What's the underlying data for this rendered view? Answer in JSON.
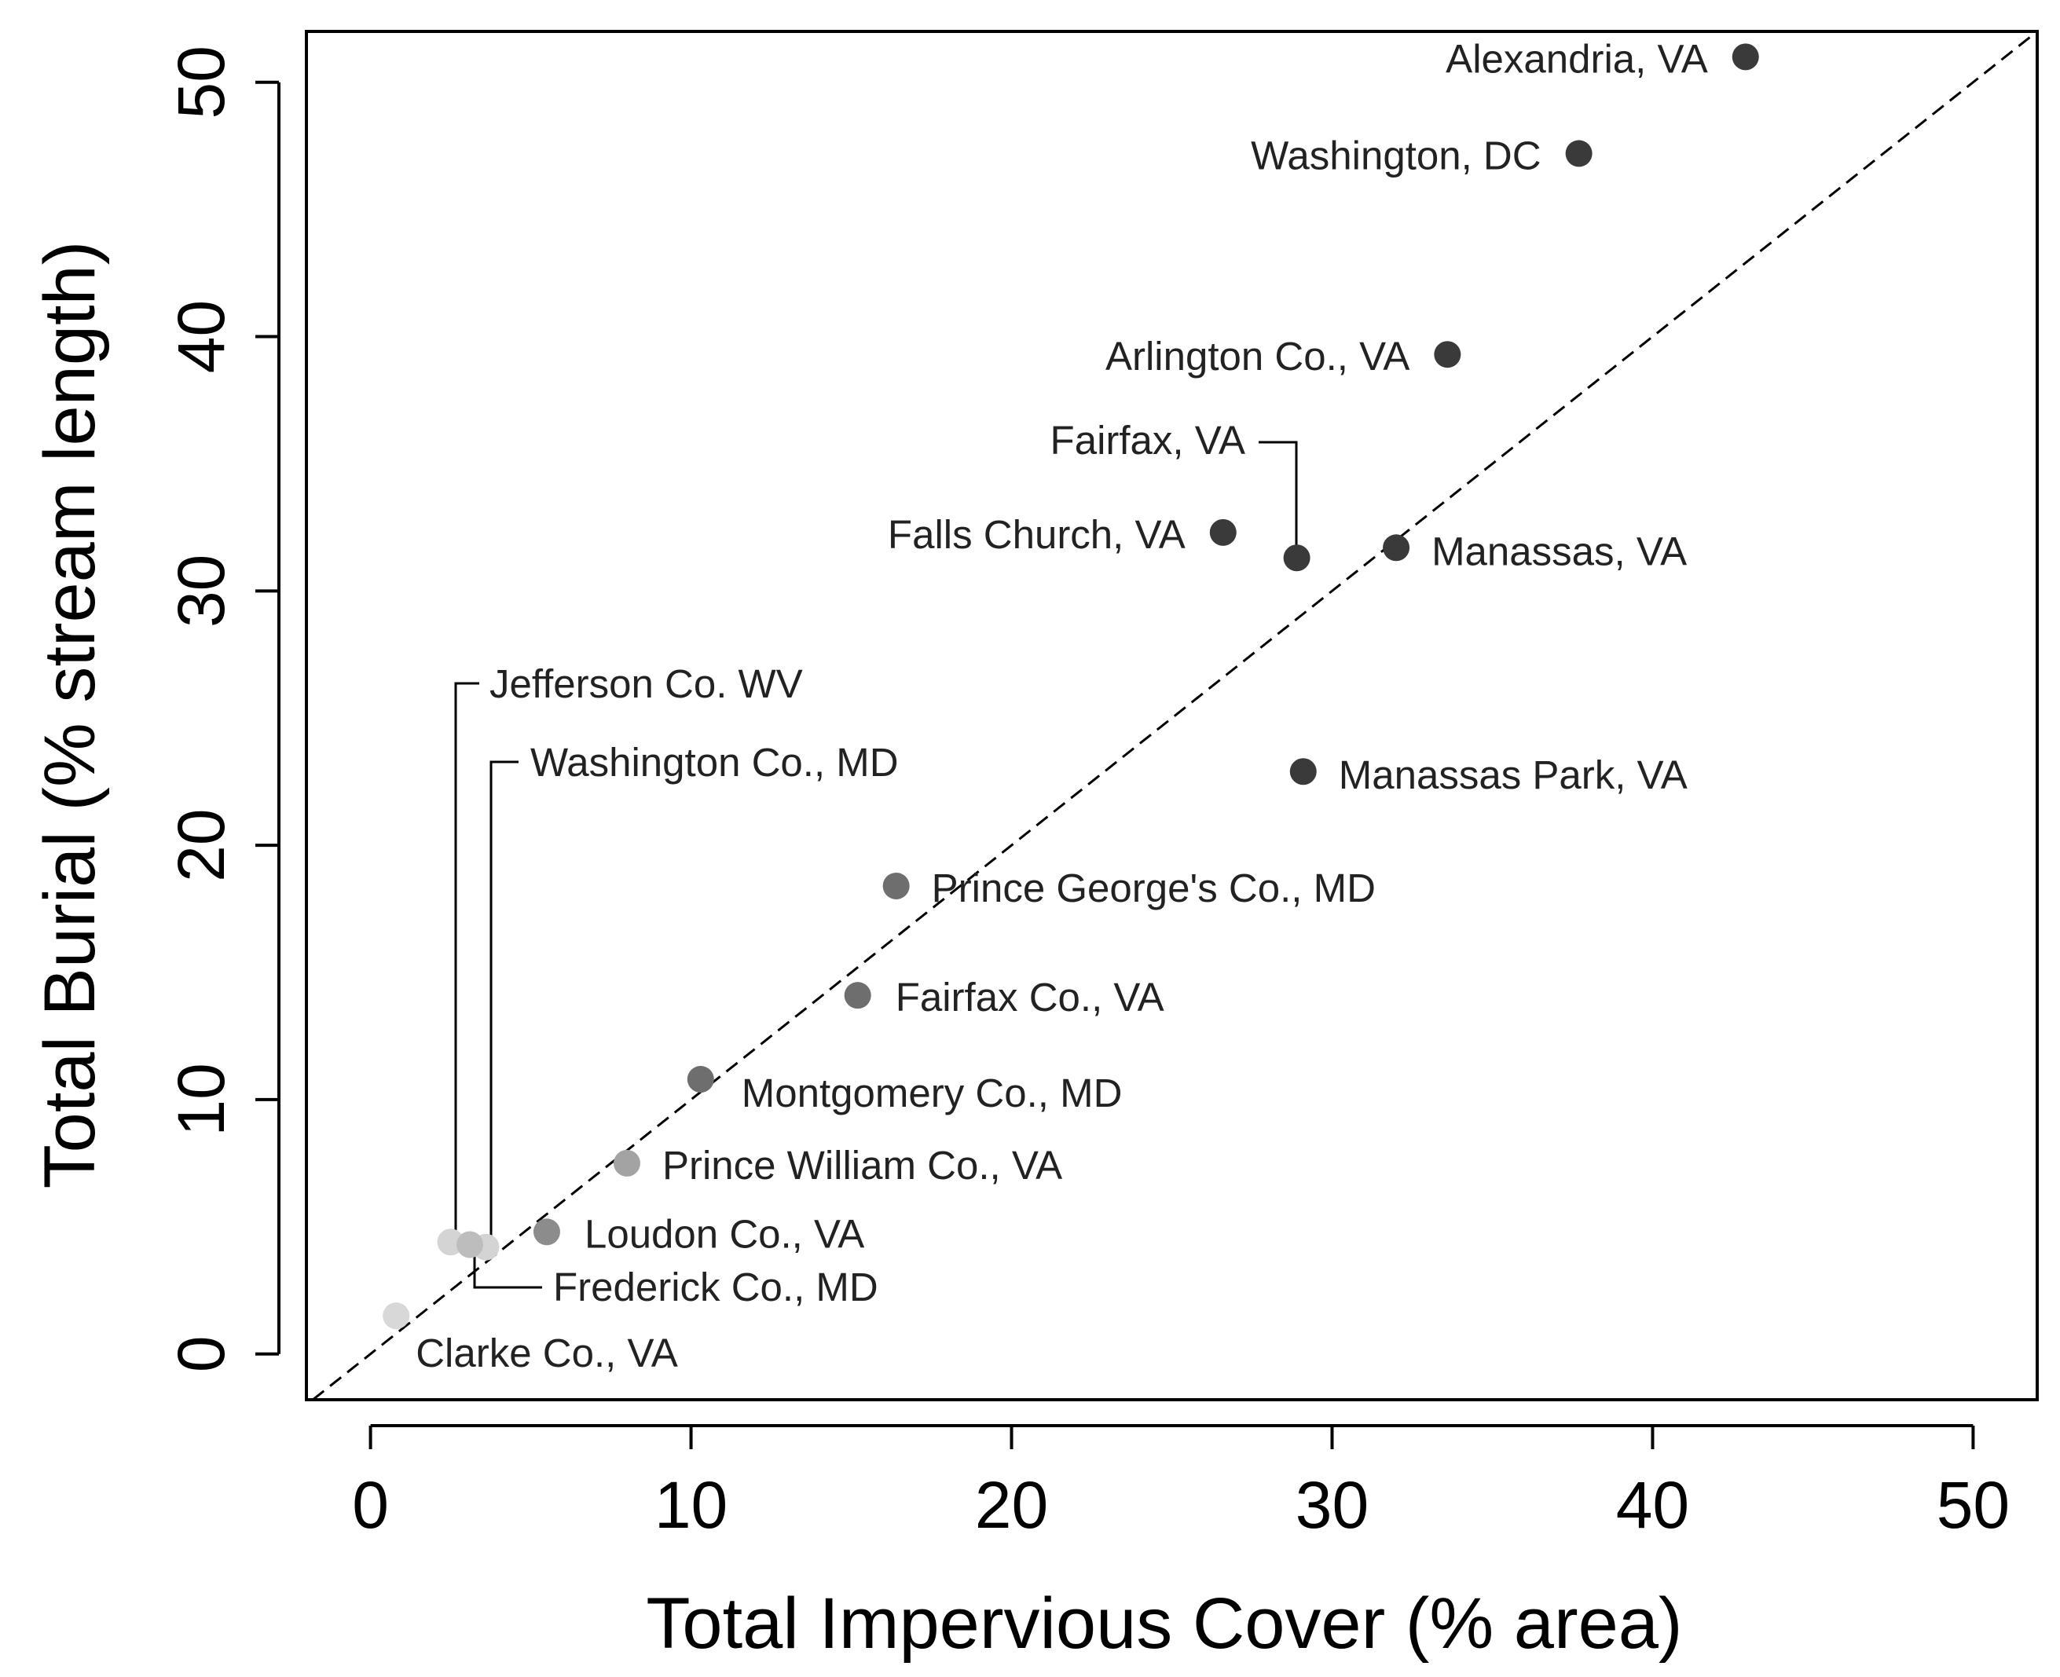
{
  "chart_data": {
    "type": "scatter",
    "title": "",
    "xlabel": "Total Impervious Cover (% area)",
    "ylabel": "Total Burial (% stream length)",
    "xlim": [
      -2,
      52
    ],
    "ylim": [
      -1.8,
      52
    ],
    "xticks": [
      0,
      10,
      20,
      30,
      40,
      50
    ],
    "yticks": [
      0,
      10,
      20,
      30,
      40,
      50
    ],
    "grid": false,
    "reference_line": {
      "type": "1:1",
      "style": "dashed"
    },
    "points": [
      {
        "name": "Alexandria, VA",
        "x": 42.9,
        "y": 51.0,
        "color": "#3a3a3a"
      },
      {
        "name": "Washington, DC",
        "x": 37.7,
        "y": 47.2,
        "color": "#3a3a3a"
      },
      {
        "name": "Arlington Co., VA",
        "x": 33.6,
        "y": 39.3,
        "color": "#3a3a3a"
      },
      {
        "name": "Fairfax, VA",
        "x": 28.9,
        "y": 31.3,
        "color": "#3a3a3a"
      },
      {
        "name": "Falls Church, VA",
        "x": 26.6,
        "y": 32.3,
        "color": "#3a3a3a"
      },
      {
        "name": "Manassas, VA",
        "x": 32.0,
        "y": 31.7,
        "color": "#3a3a3a"
      },
      {
        "name": "Manassas Park, VA",
        "x": 29.1,
        "y": 22.9,
        "color": "#3a3a3a"
      },
      {
        "name": "Prince George's Co., MD",
        "x": 16.4,
        "y": 18.4,
        "color": "#6e6e6e"
      },
      {
        "name": "Fairfax Co., VA",
        "x": 15.2,
        "y": 14.1,
        "color": "#6e6e6e"
      },
      {
        "name": "Montgomery Co., MD",
        "x": 10.3,
        "y": 10.8,
        "color": "#6e6e6e"
      },
      {
        "name": "Prince William Co., VA",
        "x": 8.0,
        "y": 7.5,
        "color": "#a3a3a3"
      },
      {
        "name": "Loudon Co., VA",
        "x": 5.5,
        "y": 4.8,
        "color": "#8c8c8c"
      },
      {
        "name": "Jefferson  Co. WV",
        "x": 2.5,
        "y": 4.4,
        "color": "#d4d4d4"
      },
      {
        "name": "Washington Co., MD",
        "x": 3.6,
        "y": 4.2,
        "color": "#d4d4d4"
      },
      {
        "name": "Frederick Co., MD",
        "x": 3.1,
        "y": 4.3,
        "color": "#bdbdbd"
      },
      {
        "name": "Clarke Co., VA",
        "x": 0.8,
        "y": 1.5,
        "color": "#d8d8d8"
      }
    ]
  }
}
